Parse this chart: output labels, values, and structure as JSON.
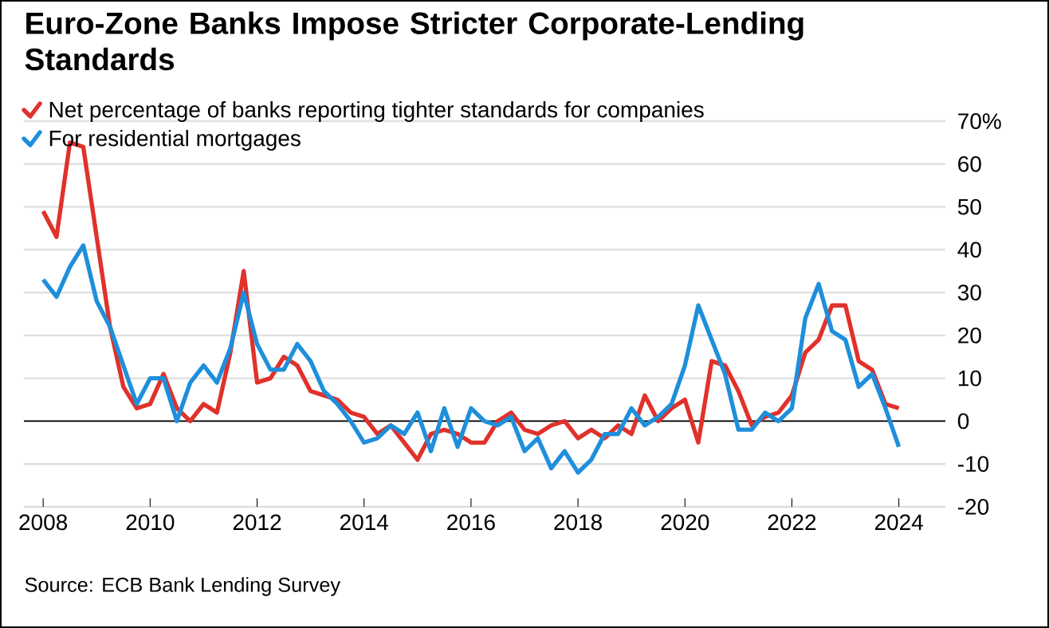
{
  "chart_data": {
    "type": "line",
    "title": "Euro-Zone Banks Impose Stricter Corporate-Lending Standards",
    "x": [
      2008.0,
      2008.25,
      2008.5,
      2008.75,
      2009.0,
      2009.25,
      2009.5,
      2009.75,
      2010.0,
      2010.25,
      2010.5,
      2010.75,
      2011.0,
      2011.25,
      2011.5,
      2011.75,
      2012.0,
      2012.25,
      2012.5,
      2012.75,
      2013.0,
      2013.25,
      2013.5,
      2013.75,
      2014.0,
      2014.25,
      2014.5,
      2014.75,
      2015.0,
      2015.25,
      2015.5,
      2015.75,
      2016.0,
      2016.25,
      2016.5,
      2016.75,
      2017.0,
      2017.25,
      2017.5,
      2017.75,
      2018.0,
      2018.25,
      2018.5,
      2018.75,
      2019.0,
      2019.25,
      2019.5,
      2019.75,
      2020.0,
      2020.25,
      2020.5,
      2020.75,
      2021.0,
      2021.25,
      2021.5,
      2021.75,
      2022.0,
      2022.25,
      2022.5,
      2022.75,
      2023.0,
      2023.25,
      2023.5,
      2023.75,
      2024.0
    ],
    "series": [
      {
        "name": "Net percentage of banks reporting tighter standards for companies",
        "color": "#e0312b",
        "values": [
          49,
          43,
          65,
          64,
          43,
          22,
          8,
          3,
          4,
          11,
          3,
          0,
          4,
          2,
          16,
          35,
          9,
          10,
          15,
          13,
          7,
          6,
          5,
          2,
          1,
          -3,
          -1,
          -5,
          -9,
          -3,
          -2,
          -3,
          -5,
          -5,
          0,
          2,
          -2,
          -3,
          -1,
          0,
          -4,
          -2,
          -4,
          -1,
          -3,
          6,
          0,
          3,
          5,
          -5,
          14,
          13,
          7,
          -1,
          1,
          2,
          6,
          16,
          19,
          27,
          27,
          14,
          12,
          4,
          3
        ]
      },
      {
        "name": "For residential mortgages",
        "color": "#1e8fdb",
        "values": [
          33,
          29,
          36,
          41,
          28,
          22,
          13,
          4,
          10,
          10,
          0,
          9,
          13,
          9,
          17,
          30,
          18,
          12,
          12,
          18,
          14,
          7,
          4,
          0,
          -5,
          -4,
          -1,
          -3,
          2,
          -7,
          3,
          -6,
          3,
          0,
          -1,
          1,
          -7,
          -4,
          -11,
          -7,
          -12,
          -9,
          -3,
          -3,
          3,
          -1,
          1,
          4,
          13,
          27,
          19,
          11,
          -2,
          -2,
          2,
          0,
          3,
          24,
          32,
          21,
          19,
          8,
          11,
          3,
          -6
        ]
      }
    ],
    "xlim": [
      2007.64,
      2024.87
    ],
    "xticks": [
      2008,
      2010,
      2012,
      2014,
      2016,
      2018,
      2020,
      2022,
      2024
    ],
    "ylim": [
      -20,
      70
    ],
    "yticks": [
      -20,
      -10,
      0,
      10,
      20,
      30,
      40,
      50,
      60,
      {
        "value": 70,
        "label": "70%"
      }
    ],
    "ref_lines": [
      {
        "axis": "y",
        "value": 0,
        "color": "#000000"
      }
    ],
    "grid": "y",
    "legend": "top left",
    "line_style": "solid",
    "marker": "none",
    "annotations": [
      "Source: ECB Bank Lending Survey"
    ]
  }
}
